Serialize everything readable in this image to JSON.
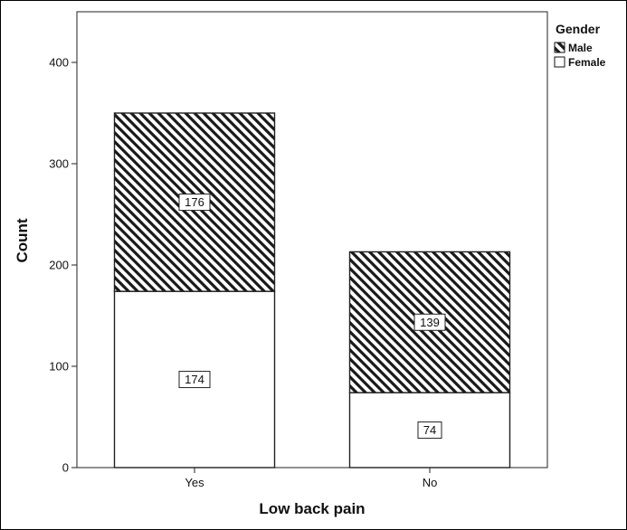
{
  "chart_data": {
    "type": "bar",
    "stacked": true,
    "categories": [
      "Yes",
      "No"
    ],
    "series": [
      {
        "name": "Female",
        "values": [
          174,
          74
        ],
        "fill": "#ffffff"
      },
      {
        "name": "Male",
        "values": [
          176,
          139
        ],
        "fill": "hatched"
      }
    ],
    "title": "",
    "xlabel": "Low back pain",
    "ylabel": "Count",
    "ylim": [
      0,
      450
    ],
    "yticks": [
      0,
      100,
      200,
      300,
      400
    ],
    "legend": {
      "title": "Gender",
      "placement": "right",
      "entries": [
        "Male",
        "Female"
      ]
    },
    "grid": false
  }
}
